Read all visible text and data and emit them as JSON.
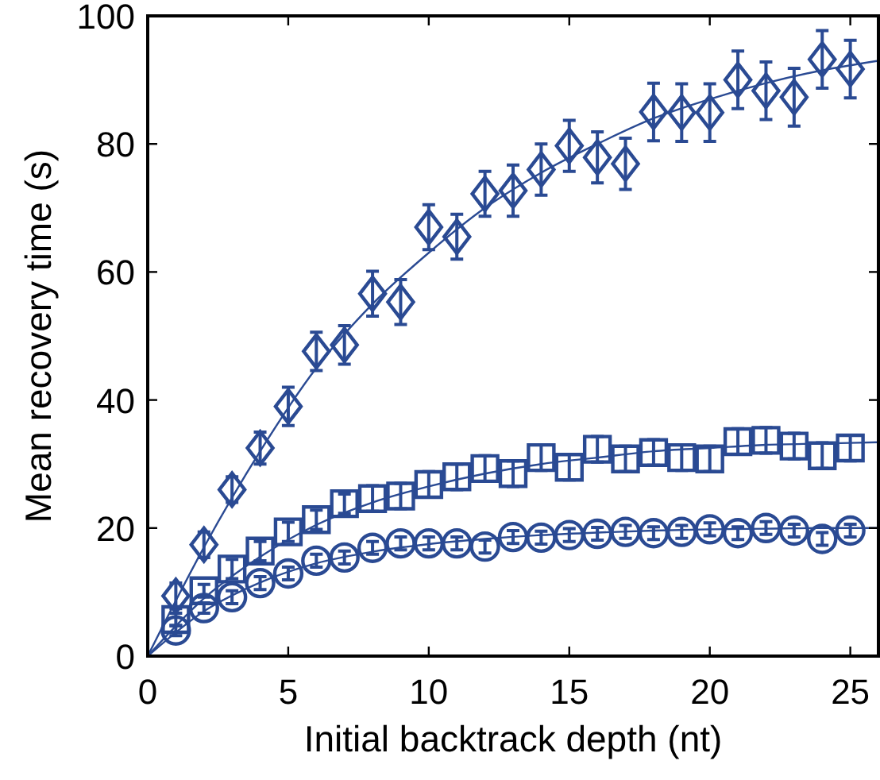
{
  "chart_data": {
    "type": "scatter",
    "xlabel": "Initial backtrack depth (nt)",
    "ylabel": "Mean recovery time (s)",
    "xlim": [
      0,
      26
    ],
    "ylim": [
      0,
      100
    ],
    "xticks": [
      0,
      5,
      10,
      15,
      20,
      25
    ],
    "yticks": [
      0,
      20,
      40,
      60,
      80,
      100
    ],
    "grid": false,
    "series": [
      {
        "marker": "diamond",
        "color": "#2a4a93",
        "x": [
          1,
          2,
          3,
          4,
          5,
          6,
          7,
          8,
          9,
          10,
          11,
          12,
          13,
          14,
          15,
          16,
          17,
          18,
          19,
          20,
          21,
          22,
          23,
          24,
          25
        ],
        "values": [
          9.4,
          17.4,
          26,
          32.5,
          39,
          47.6,
          48.6,
          56.6,
          55.3,
          67,
          65.5,
          72.2,
          72.7,
          76,
          79.7,
          77.9,
          76.9,
          85,
          84.9,
          84.9,
          90,
          88.3,
          87.3,
          93.2,
          91.7
        ],
        "errors": [
          2,
          2,
          2,
          2.5,
          3,
          3,
          3,
          3.5,
          3.5,
          3.5,
          3.5,
          3.5,
          4,
          4,
          4,
          4,
          4,
          4.5,
          4.5,
          4.5,
          4.5,
          4.5,
          4.5,
          4.5,
          4.5
        ]
      },
      {
        "marker": "square",
        "color": "#2a4a93",
        "x": [
          1,
          2,
          3,
          4,
          5,
          6,
          7,
          8,
          9,
          10,
          11,
          12,
          13,
          14,
          15,
          16,
          17,
          18,
          19,
          20,
          21,
          22,
          23,
          24,
          25
        ],
        "values": [
          5.7,
          10.2,
          13.6,
          16.4,
          19.4,
          21.3,
          23.8,
          24.6,
          25,
          26.8,
          28,
          29.3,
          28.5,
          31,
          29.5,
          32.3,
          30.8,
          31.8,
          31,
          30.8,
          33.5,
          33.7,
          32.8,
          31.3,
          32.5
        ],
        "errors": [
          1,
          1,
          1.5,
          1.5,
          1.5,
          1.5,
          1.5,
          2,
          2,
          2,
          2,
          2,
          2,
          2,
          2,
          2,
          2,
          2,
          2,
          2,
          2,
          2,
          2,
          2,
          2
        ]
      },
      {
        "marker": "circle",
        "color": "#2a4a93",
        "x": [
          1,
          2,
          3,
          4,
          5,
          6,
          7,
          8,
          9,
          10,
          11,
          12,
          13,
          14,
          15,
          16,
          17,
          18,
          19,
          20,
          21,
          22,
          23,
          24,
          25
        ],
        "values": [
          4,
          7.5,
          9.2,
          11.4,
          12.9,
          14.9,
          15.4,
          16.9,
          17.6,
          17.6,
          17.6,
          17.1,
          18.6,
          18.5,
          18.9,
          19.1,
          19.4,
          19.2,
          19.4,
          19.8,
          19.2,
          20,
          19.6,
          18.3,
          19.6
        ],
        "errors": [
          0.8,
          0.8,
          1,
          1,
          1,
          1,
          1,
          1,
          1,
          1,
          1,
          1,
          1,
          1,
          1,
          1,
          1,
          1,
          1,
          1,
          1,
          1,
          1,
          1,
          1
        ]
      },
      {
        "type": "line",
        "marker": "none",
        "color": "#2a4a93",
        "x": [
          0,
          2,
          4,
          6,
          8,
          10,
          12,
          14,
          16,
          18,
          20,
          22,
          24,
          26
        ],
        "values": [
          0,
          17,
          32,
          45,
          55,
          63,
          70,
          75.5,
          80,
          84,
          87,
          89.5,
          91.5,
          93
        ]
      },
      {
        "type": "line",
        "marker": "none",
        "color": "#2a4a93",
        "x": [
          0,
          2,
          4,
          6,
          8,
          10,
          12,
          14,
          16,
          18,
          20,
          22,
          24,
          26
        ],
        "values": [
          0,
          9,
          15.5,
          20.5,
          24,
          26.5,
          28.5,
          30,
          31,
          32,
          32.5,
          33,
          33.2,
          33.4
        ]
      },
      {
        "type": "line",
        "marker": "none",
        "color": "#2a4a93",
        "x": [
          0,
          2,
          4,
          6,
          8,
          10,
          12,
          14,
          16,
          18,
          20,
          22,
          24,
          26
        ],
        "values": [
          0,
          7,
          11.5,
          14.5,
          16.3,
          17.5,
          18.3,
          18.9,
          19.3,
          19.6,
          19.8,
          19.9,
          20,
          20
        ]
      }
    ]
  }
}
